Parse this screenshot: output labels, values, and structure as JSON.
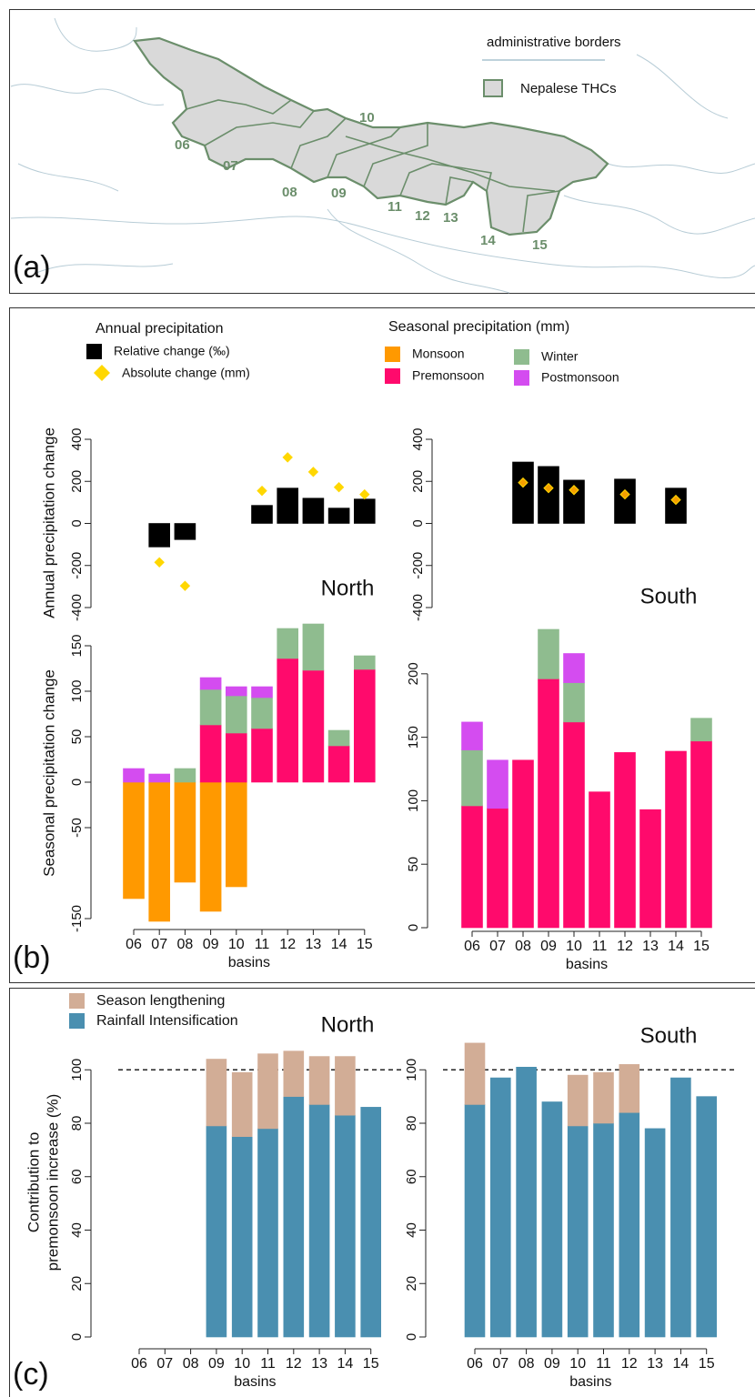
{
  "panel_labels": [
    "(a)",
    "(b)",
    "(c)"
  ],
  "map": {
    "legend": [
      "administrative borders",
      "Nepalese THCs"
    ],
    "basin_labels": [
      "06",
      "07",
      "08",
      "09",
      "10",
      "11",
      "12",
      "13",
      "14",
      "15"
    ]
  },
  "chart_data": [
    {
      "type": "bar",
      "title": "North",
      "ylabel": "Annual precipitation change",
      "legend_title": "Annual precipitation",
      "ylim": [
        -400,
        400
      ],
      "yticks": [
        -400,
        -200,
        0,
        200,
        400
      ],
      "series": [
        {
          "name": "Relative change (‰)",
          "color": "#000000",
          "values": [
            0,
            -112,
            -77,
            0,
            0,
            86,
            168,
            120,
            73,
            116
          ]
        },
        {
          "name": "Absolute change (mm)",
          "color": "#ffd700",
          "marker": "diamond",
          "values": [
            null,
            -185,
            -297,
            null,
            null,
            155,
            314,
            245,
            172,
            138
          ]
        }
      ]
    },
    {
      "type": "bar",
      "title": "South",
      "ylim": [
        -400,
        400
      ],
      "yticks": [
        -400,
        -200,
        0,
        200,
        400
      ],
      "series": [
        {
          "color": "#000000",
          "values": [
            0,
            0,
            292,
            271,
            206,
            0,
            211,
            0,
            168,
            0
          ]
        },
        {
          "color": "#f5a000",
          "marker": "diamond",
          "values": [
            null,
            null,
            194,
            168,
            159,
            null,
            138,
            null,
            112,
            null
          ]
        }
      ]
    },
    {
      "type": "bar",
      "stacked": true,
      "ylabel": "Seasonal precipitation change",
      "xlabel": "basins",
      "legend_title": "Seasonal precipitation (mm)",
      "categories": [
        "06",
        "07",
        "08",
        "09",
        "10",
        "11",
        "12",
        "13",
        "14",
        "15"
      ],
      "ylim": [
        -160,
        180
      ],
      "yticks": [
        -150,
        -50,
        0,
        50,
        100,
        150
      ],
      "series": [
        {
          "name": "Monsoon",
          "color": "#ff9900",
          "values": [
            -128,
            -153,
            -110,
            -142,
            -115,
            null,
            null,
            null,
            null,
            null
          ]
        },
        {
          "name": "Premonsoon",
          "color": "#ff0a6c",
          "values": [
            null,
            null,
            null,
            63,
            54,
            59,
            136,
            123,
            40,
            124
          ]
        },
        {
          "name": "Winter",
          "color": "#8fbc8f",
          "values": [
            null,
            null,
            15,
            39,
            41,
            34,
            33,
            51,
            17,
            15
          ]
        },
        {
          "name": "Postmonsoon",
          "color": "#d44cf0",
          "values": [
            15,
            9,
            null,
            13,
            10,
            12,
            null,
            null,
            null,
            null
          ]
        }
      ]
    },
    {
      "type": "bar",
      "stacked": true,
      "xlabel": "basins",
      "categories": [
        "06",
        "07",
        "08",
        "09",
        "10",
        "11",
        "12",
        "13",
        "14",
        "15"
      ],
      "ylim": [
        0,
        240
      ],
      "yticks": [
        0,
        50,
        100,
        150,
        200
      ],
      "series": [
        {
          "color": "#ff9900",
          "values": [
            null,
            null,
            null,
            null,
            null,
            null,
            null,
            null,
            null,
            null
          ]
        },
        {
          "color": "#ff0a6c",
          "values": [
            96,
            94,
            132,
            196,
            162,
            107,
            138,
            93,
            139,
            147
          ]
        },
        {
          "color": "#8fbc8f",
          "values": [
            44,
            null,
            null,
            39,
            31,
            null,
            null,
            null,
            null,
            18
          ]
        },
        {
          "color": "#d44cf0",
          "values": [
            22,
            38,
            null,
            null,
            23,
            null,
            null,
            null,
            null,
            null
          ]
        }
      ]
    },
    {
      "type": "bar",
      "stacked": true,
      "title": "North",
      "ylabel": [
        "Contribution to",
        "premonsoon increase (%)"
      ],
      "xlabel": "basins",
      "categories": [
        "06",
        "07",
        "08",
        "09",
        "10",
        "11",
        "12",
        "13",
        "14",
        "15"
      ],
      "ylim": [
        0,
        112
      ],
      "yticks": [
        0,
        20,
        40,
        60,
        80,
        100
      ],
      "hline": 100,
      "series": [
        {
          "name": "Rainfall Intensification",
          "color": "#4a8fb0",
          "values": [
            0,
            0,
            0,
            79,
            75,
            78,
            90,
            87,
            83,
            86
          ]
        },
        {
          "name": "Season lengthening",
          "color": "#d2ad96",
          "values": [
            null,
            null,
            null,
            25,
            24,
            28,
            17,
            18,
            22,
            null
          ]
        }
      ]
    },
    {
      "type": "bar",
      "stacked": true,
      "title": "South",
      "xlabel": "basins",
      "categories": [
        "06",
        "07",
        "08",
        "09",
        "10",
        "11",
        "12",
        "13",
        "14",
        "15"
      ],
      "ylim": [
        0,
        112
      ],
      "yticks": [
        0,
        20,
        40,
        60,
        80,
        100
      ],
      "hline": 100,
      "series": [
        {
          "color": "#4a8fb0",
          "values": [
            87,
            97,
            101,
            88,
            79,
            80,
            84,
            78,
            97,
            90
          ]
        },
        {
          "color": "#d2ad96",
          "values": [
            23,
            null,
            null,
            null,
            19,
            19,
            18,
            null,
            null,
            null
          ]
        }
      ]
    }
  ]
}
